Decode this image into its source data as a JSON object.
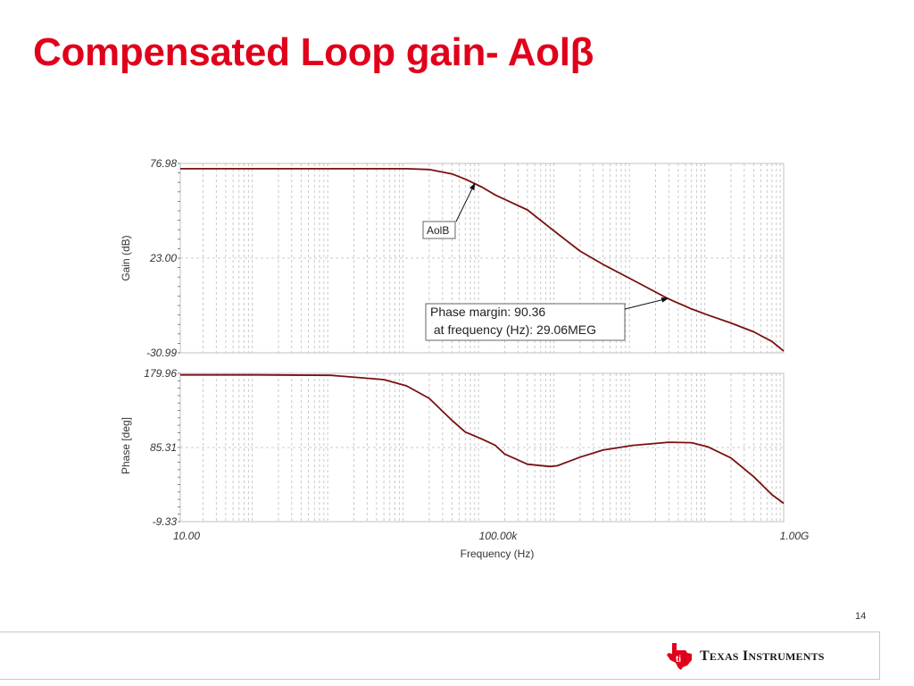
{
  "slide": {
    "title": "Compensated Loop gain- Aolβ",
    "page_number": "14",
    "company": "Texas Instruments"
  },
  "colors": {
    "title": "#e0001b",
    "trace": "#7a1010",
    "grid": "#bdbdbd",
    "logo": "#e0001b"
  },
  "chart_data": [
    {
      "type": "line",
      "ylabel": "Gain (dB)",
      "xscale": "log",
      "xlim": [
        10,
        1000000000
      ],
      "ylim": [
        -30.99,
        76.98
      ],
      "yticks": [
        "76.98",
        "23.00",
        "-30.99"
      ],
      "grid": true,
      "series": [
        {
          "name": "AolB",
          "x": [
            10,
            100,
            1000,
            5000,
            10000,
            20000,
            40000,
            60000,
            100000,
            150000,
            200000,
            400000,
            1000000,
            2000000,
            4000000,
            10000000,
            29060000,
            60000000,
            100000000,
            200000000,
            400000000,
            700000000,
            1000000000
          ],
          "y": [
            74,
            74,
            74,
            74,
            74,
            73.5,
            71,
            68,
            63.5,
            59,
            56.5,
            50.5,
            37,
            27,
            19.5,
            10.5,
            0,
            -6,
            -9.5,
            -14,
            -19,
            -24.5,
            -30
          ]
        }
      ],
      "annotations": [
        {
          "text": "AolB",
          "target_x": 80000,
          "target_y": 65.5
        },
        {
          "text": "Phase margin: 90.36",
          "text2": " at frequency (Hz): 29.06MEG",
          "target_x": 29060000,
          "target_y": 0
        }
      ]
    },
    {
      "type": "line",
      "ylabel": "Phase [deg]",
      "xlabel": "Frequency (Hz)",
      "xscale": "log",
      "xlim": [
        10,
        1000000000
      ],
      "ylim": [
        -9.33,
        179.96
      ],
      "yticks": [
        "179.96",
        "85.31",
        "-9.33"
      ],
      "xticks": [
        "10.00",
        "100.00k",
        "1.00G"
      ],
      "grid": true,
      "series": [
        {
          "name": "",
          "x": [
            10,
            100,
            1000,
            5000,
            10000,
            20000,
            40000,
            60000,
            100000,
            150000,
            200000,
            400000,
            800000,
            1000000,
            2000000,
            4000000,
            10000000,
            30000000,
            60000000,
            100000000,
            200000000,
            400000000,
            700000000,
            1000000000
          ],
          "y": [
            178,
            178,
            177.5,
            172,
            164,
            148,
            120,
            105,
            96,
            88,
            77,
            64,
            61,
            62,
            73,
            82,
            88,
            92,
            91.5,
            86,
            72,
            48,
            25,
            14
          ]
        }
      ]
    }
  ]
}
